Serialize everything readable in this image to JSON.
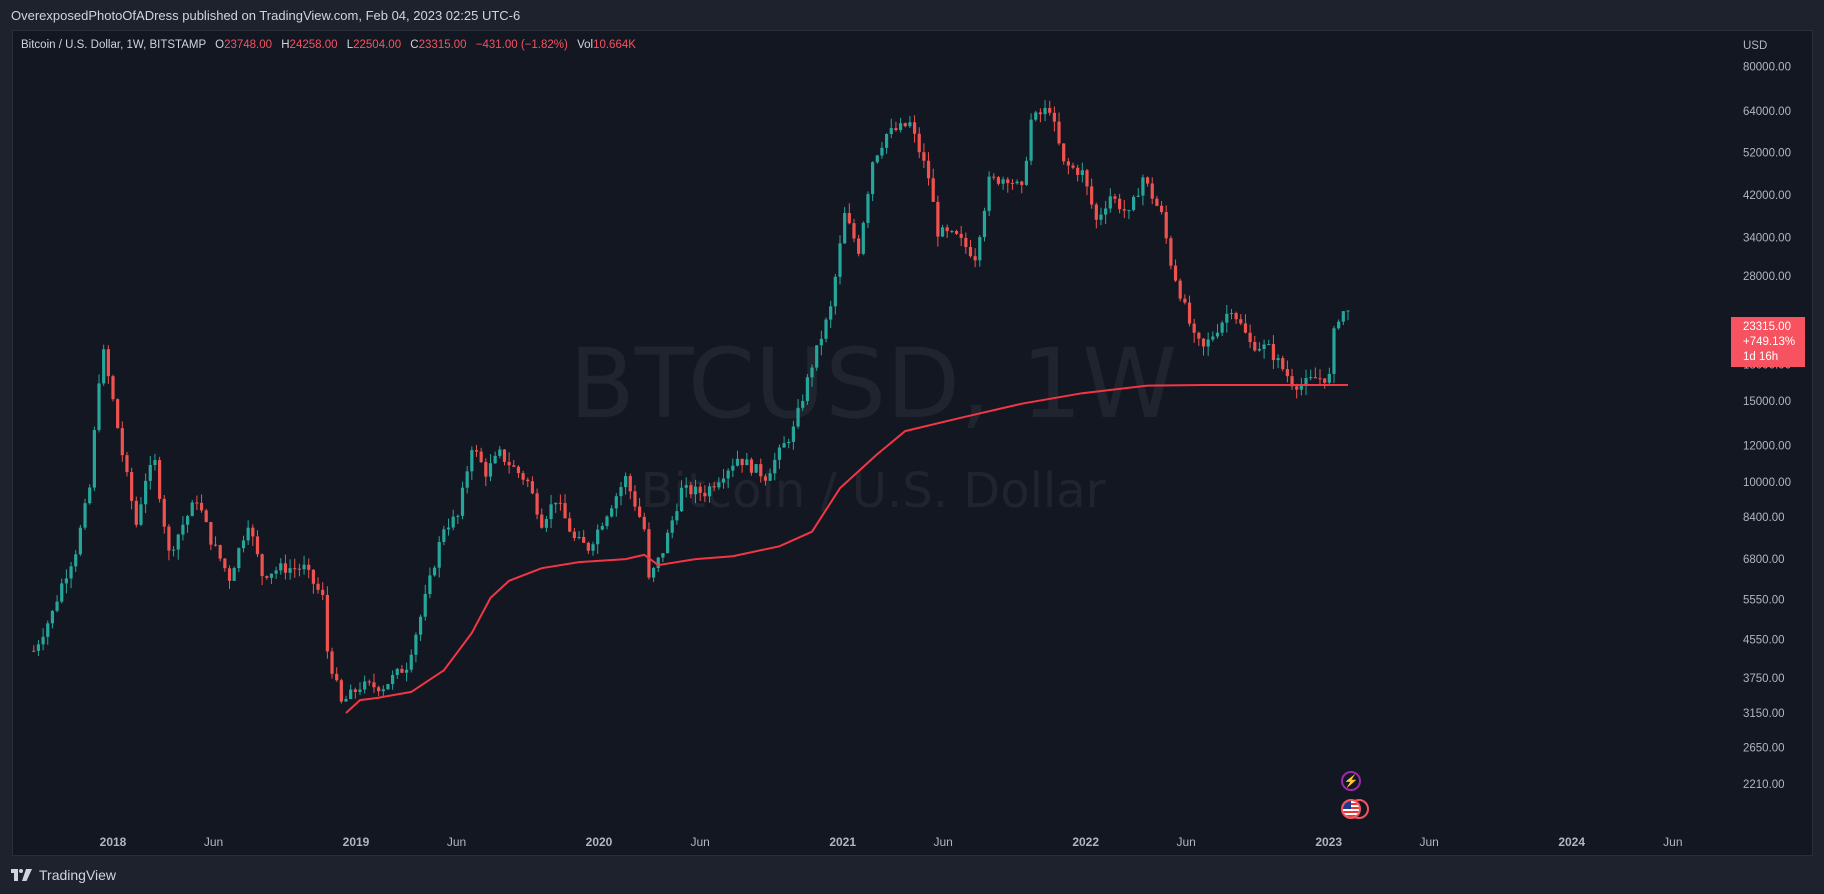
{
  "header": {
    "publish_line": "OverexposedPhotoOfADress published on TradingView.com, Feb 04, 2023 02:25 UTC-6"
  },
  "legend": {
    "symbol": "Bitcoin / U.S. Dollar, 1W, BITSTAMP",
    "o_label": "O",
    "o_value": "23748.00",
    "h_label": "H",
    "h_value": "24258.00",
    "l_label": "L",
    "l_value": "22504.00",
    "c_label": "C",
    "c_value": "23315.00",
    "change": "−431.00 (−1.82%)",
    "vol_label": "Vol",
    "vol_value": "10.664K"
  },
  "watermark": {
    "main": "BTCUSD, 1W",
    "sub": "Bitcoin / U.S. Dollar"
  },
  "price_tag": {
    "price": "23315.00",
    "change": "+749.13%",
    "countdown": "1d 16h"
  },
  "footer": {
    "brand": "TradingView",
    "logo_icon": "tradingview-logo-icon"
  },
  "events": {
    "flash_icon": "lightning-event-icon",
    "flag_icon": "us-flag-event-icon"
  },
  "colors": {
    "background": "#131722",
    "up": "#26a69a",
    "down": "#ef5350",
    "line": "#f23645",
    "text": "#d1d4dc",
    "axis_text": "#b2b5be"
  },
  "chart_data": {
    "type": "candlestick",
    "title": "Bitcoin / U.S. Dollar, 1W, BITSTAMP",
    "y_axis_unit": "USD",
    "y_scale": "log",
    "y_ticks": [
      2210,
      2650,
      3150,
      3750,
      4550,
      5550,
      6800,
      8400,
      10000,
      12000,
      15000,
      18000,
      28000,
      34000,
      42000,
      52000,
      64000,
      80000
    ],
    "y_tick_labels": [
      "2210.00",
      "2650.00",
      "3150.00",
      "3750.00",
      "4550.00",
      "5550.00",
      "6800.00",
      "8400.00",
      "10000.00",
      "12000.00",
      "15000.00",
      "18000.00",
      "28000.00",
      "34000.00",
      "42000.00",
      "52000.00",
      "64000.00",
      "80000.00"
    ],
    "x_ticks": [
      {
        "label": "2018",
        "date": "2018-01-01"
      },
      {
        "label": "Jun",
        "date": "2018-06-01"
      },
      {
        "label": "2019",
        "date": "2019-01-01"
      },
      {
        "label": "Jun",
        "date": "2019-06-01"
      },
      {
        "label": "2020",
        "date": "2020-01-01"
      },
      {
        "label": "Jun",
        "date": "2020-06-01"
      },
      {
        "label": "2021",
        "date": "2021-01-01"
      },
      {
        "label": "Jun",
        "date": "2021-06-01"
      },
      {
        "label": "2022",
        "date": "2022-01-01"
      },
      {
        "label": "Jun",
        "date": "2022-06-01"
      },
      {
        "label": "2023",
        "date": "2023-01-01"
      },
      {
        "label": "Jun",
        "date": "2023-06-01"
      },
      {
        "label": "2024",
        "date": "2024-01-01"
      },
      {
        "label": "Jun",
        "date": "2024-06-01"
      }
    ],
    "series": [
      {
        "name": "Price (approx. weekly close)",
        "points": [
          [
            "2017-09-04",
            4300
          ],
          [
            "2017-10-02",
            5200
          ],
          [
            "2017-10-16",
            6000
          ],
          [
            "2017-11-06",
            7100
          ],
          [
            "2017-11-27",
            9700
          ],
          [
            "2017-12-11",
            16800
          ],
          [
            "2017-12-18",
            19000
          ],
          [
            "2018-01-01",
            15000
          ],
          [
            "2018-01-15",
            11500
          ],
          [
            "2018-02-05",
            8100
          ],
          [
            "2018-02-19",
            10200
          ],
          [
            "2018-03-05",
            11000
          ],
          [
            "2018-03-26",
            7000
          ],
          [
            "2018-04-16",
            8100
          ],
          [
            "2018-05-07",
            9200
          ],
          [
            "2018-05-28",
            7500
          ],
          [
            "2018-06-25",
            6200
          ],
          [
            "2018-07-23",
            8200
          ],
          [
            "2018-08-13",
            6300
          ],
          [
            "2018-09-10",
            6500
          ],
          [
            "2018-10-15",
            6500
          ],
          [
            "2018-11-12",
            5600
          ],
          [
            "2018-11-19",
            4300
          ],
          [
            "2018-12-10",
            3300
          ],
          [
            "2019-01-07",
            3600
          ],
          [
            "2019-02-11",
            3600
          ],
          [
            "2019-03-18",
            4000
          ],
          [
            "2019-04-08",
            5100
          ],
          [
            "2019-05-13",
            8000
          ],
          [
            "2019-06-03",
            8400
          ],
          [
            "2019-06-24",
            12000
          ],
          [
            "2019-07-15",
            10500
          ],
          [
            "2019-08-05",
            11500
          ],
          [
            "2019-09-16",
            10000
          ],
          [
            "2019-10-07",
            8200
          ],
          [
            "2019-10-28",
            9200
          ],
          [
            "2019-11-25",
            7500
          ],
          [
            "2019-12-16",
            7200
          ],
          [
            "2020-01-13",
            8600
          ],
          [
            "2020-02-10",
            10200
          ],
          [
            "2020-03-09",
            7900
          ],
          [
            "2020-03-16",
            6100
          ],
          [
            "2020-04-06",
            7100
          ],
          [
            "2020-05-04",
            9600
          ],
          [
            "2020-06-08",
            9500
          ],
          [
            "2020-07-27",
            11300
          ],
          [
            "2020-09-07",
            10300
          ],
          [
            "2020-10-19",
            13000
          ],
          [
            "2020-11-16",
            18000
          ],
          [
            "2020-12-14",
            23800
          ],
          [
            "2021-01-04",
            38000
          ],
          [
            "2021-01-25",
            32000
          ],
          [
            "2021-02-15",
            50000
          ],
          [
            "2021-03-08",
            57000
          ],
          [
            "2021-04-12",
            60000
          ],
          [
            "2021-05-10",
            46000
          ],
          [
            "2021-05-24",
            35000
          ],
          [
            "2021-06-21",
            34000
          ],
          [
            "2021-07-19",
            31000
          ],
          [
            "2021-08-09",
            45000
          ],
          [
            "2021-09-06",
            46000
          ],
          [
            "2021-09-27",
            43000
          ],
          [
            "2021-10-11",
            61000
          ],
          [
            "2021-11-08",
            65000
          ],
          [
            "2021-11-29",
            49000
          ],
          [
            "2021-12-27",
            47000
          ],
          [
            "2022-01-17",
            37000
          ],
          [
            "2022-02-07",
            42000
          ],
          [
            "2022-03-07",
            38000
          ],
          [
            "2022-03-28",
            46000
          ],
          [
            "2022-04-25",
            38000
          ],
          [
            "2022-05-09",
            30000
          ],
          [
            "2022-06-13",
            20500
          ],
          [
            "2022-06-27",
            19500
          ],
          [
            "2022-08-08",
            24000
          ],
          [
            "2022-09-05",
            20000
          ],
          [
            "2022-10-03",
            19500
          ],
          [
            "2022-11-07",
            16500
          ],
          [
            "2022-11-21",
            16200
          ],
          [
            "2022-12-12",
            16800
          ],
          [
            "2023-01-02",
            16900
          ],
          [
            "2023-01-09",
            21000
          ],
          [
            "2023-01-16",
            22900
          ],
          [
            "2023-01-23",
            23500
          ],
          [
            "2023-01-30",
            23315
          ]
        ]
      },
      {
        "name": "Moving average (red line)",
        "points": [
          [
            "2018-12-17",
            3150
          ],
          [
            "2019-01-07",
            3360
          ],
          [
            "2019-02-04",
            3400
          ],
          [
            "2019-03-25",
            3500
          ],
          [
            "2019-05-13",
            3900
          ],
          [
            "2019-06-24",
            4700
          ],
          [
            "2019-07-22",
            5600
          ],
          [
            "2019-08-19",
            6100
          ],
          [
            "2019-10-07",
            6500
          ],
          [
            "2019-12-02",
            6700
          ],
          [
            "2020-02-10",
            6800
          ],
          [
            "2020-03-09",
            6950
          ],
          [
            "2020-03-30",
            6600
          ],
          [
            "2020-05-25",
            6800
          ],
          [
            "2020-07-20",
            6900
          ],
          [
            "2020-09-28",
            7250
          ],
          [
            "2020-11-16",
            7800
          ],
          [
            "2020-12-28",
            9700
          ],
          [
            "2021-02-22",
            11500
          ],
          [
            "2021-04-05",
            12900
          ],
          [
            "2021-06-28",
            13800
          ],
          [
            "2021-09-27",
            14800
          ],
          [
            "2021-12-27",
            15600
          ],
          [
            "2022-04-04",
            16200
          ],
          [
            "2022-06-27",
            16250
          ],
          [
            "2022-10-03",
            16250
          ],
          [
            "2023-01-30",
            16250
          ]
        ]
      }
    ]
  }
}
